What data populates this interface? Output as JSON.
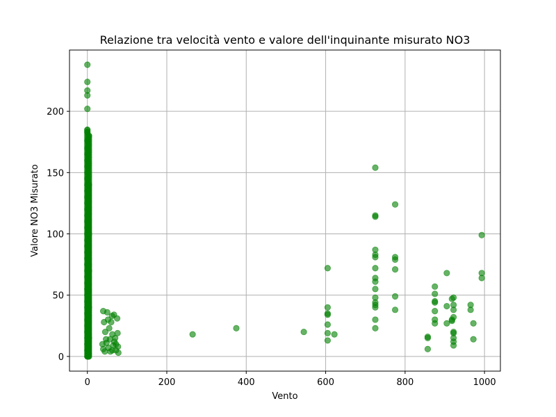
{
  "chart_data": {
    "type": "scatter",
    "title": "Relazione tra velocità vento e valore dell'inquinante misurato NO3",
    "xlabel": "Vento",
    "ylabel": "Valore NO3 Misurato",
    "xlim": [
      -45,
      1040
    ],
    "ylim": [
      -12,
      250
    ],
    "xticks": [
      0,
      200,
      400,
      600,
      800,
      1000
    ],
    "yticks": [
      0,
      50,
      100,
      150,
      200
    ],
    "grid": true,
    "marker_color": "#008000",
    "marker_opacity": 0.6,
    "points": [
      [
        0,
        238
      ],
      [
        0,
        224
      ],
      [
        0,
        217
      ],
      [
        0,
        213
      ],
      [
        0,
        202
      ],
      [
        0,
        185
      ],
      [
        0,
        183
      ],
      [
        0,
        176
      ],
      [
        0,
        170
      ],
      [
        0,
        165
      ],
      [
        0,
        160
      ],
      [
        0,
        155
      ],
      [
        0,
        150
      ],
      [
        0,
        145
      ],
      [
        0,
        140
      ],
      [
        0,
        135
      ],
      [
        0,
        130
      ],
      [
        0,
        125
      ],
      [
        0,
        120
      ],
      [
        0,
        115
      ],
      [
        0,
        110
      ],
      [
        0,
        105
      ],
      [
        0,
        100
      ],
      [
        0,
        95
      ],
      [
        0,
        90
      ],
      [
        0,
        85
      ],
      [
        0,
        80
      ],
      [
        0,
        75
      ],
      [
        0,
        70
      ],
      [
        0,
        65
      ],
      [
        0,
        60
      ],
      [
        0,
        55
      ],
      [
        0,
        50
      ],
      [
        0,
        45
      ],
      [
        0,
        40
      ],
      [
        0,
        35
      ],
      [
        0,
        30
      ],
      [
        0,
        25
      ],
      [
        0,
        20
      ],
      [
        0,
        15
      ],
      [
        0,
        10
      ],
      [
        0,
        5
      ],
      [
        0,
        0
      ],
      [
        2,
        112
      ],
      [
        2,
        95
      ],
      [
        2,
        80
      ],
      [
        2,
        65
      ],
      [
        2,
        50
      ],
      [
        2,
        35
      ],
      [
        2,
        20
      ],
      [
        2,
        8
      ],
      [
        4,
        180
      ],
      [
        4,
        140
      ],
      [
        4,
        100
      ],
      [
        4,
        70
      ],
      [
        4,
        40
      ],
      [
        4,
        15
      ],
      [
        40,
        37
      ],
      [
        42,
        28
      ],
      [
        45,
        20
      ],
      [
        48,
        11
      ],
      [
        50,
        36
      ],
      [
        52,
        30
      ],
      [
        55,
        23
      ],
      [
        57,
        14
      ],
      [
        60,
        28
      ],
      [
        62,
        33
      ],
      [
        63,
        18
      ],
      [
        65,
        9
      ],
      [
        67,
        34
      ],
      [
        70,
        15
      ],
      [
        72,
        5
      ],
      [
        75,
        31
      ],
      [
        76,
        19
      ],
      [
        77,
        8
      ],
      [
        78,
        3
      ],
      [
        38,
        10
      ],
      [
        40,
        6
      ],
      [
        44,
        4
      ],
      [
        47,
        14
      ],
      [
        53,
        7
      ],
      [
        58,
        4
      ],
      [
        63,
        5
      ],
      [
        68,
        12
      ],
      [
        72,
        10
      ],
      [
        265,
        18
      ],
      [
        375,
        23
      ],
      [
        545,
        20
      ],
      [
        605,
        72
      ],
      [
        605,
        40
      ],
      [
        605,
        35
      ],
      [
        605,
        34
      ],
      [
        605,
        26
      ],
      [
        605,
        19
      ],
      [
        605,
        13
      ],
      [
        622,
        18
      ],
      [
        725,
        154
      ],
      [
        725,
        115
      ],
      [
        725,
        114
      ],
      [
        725,
        87
      ],
      [
        725,
        83
      ],
      [
        725,
        81
      ],
      [
        725,
        72
      ],
      [
        725,
        64
      ],
      [
        725,
        61
      ],
      [
        725,
        55
      ],
      [
        725,
        48
      ],
      [
        725,
        44
      ],
      [
        725,
        42
      ],
      [
        725,
        40
      ],
      [
        725,
        30
      ],
      [
        725,
        23
      ],
      [
        775,
        124
      ],
      [
        775,
        81
      ],
      [
        775,
        79
      ],
      [
        775,
        71
      ],
      [
        775,
        49
      ],
      [
        775,
        38
      ],
      [
        857,
        16
      ],
      [
        857,
        15
      ],
      [
        857,
        6
      ],
      [
        875,
        57
      ],
      [
        875,
        51
      ],
      [
        875,
        45
      ],
      [
        875,
        44
      ],
      [
        875,
        37
      ],
      [
        875,
        30
      ],
      [
        875,
        27
      ],
      [
        905,
        68
      ],
      [
        905,
        41
      ],
      [
        905,
        27
      ],
      [
        918,
        47
      ],
      [
        918,
        30
      ],
      [
        918,
        29
      ],
      [
        922,
        48
      ],
      [
        922,
        42
      ],
      [
        922,
        38
      ],
      [
        922,
        32
      ],
      [
        922,
        20
      ],
      [
        922,
        19
      ],
      [
        922,
        15
      ],
      [
        922,
        12
      ],
      [
        922,
        9
      ],
      [
        965,
        42
      ],
      [
        965,
        38
      ],
      [
        972,
        27
      ],
      [
        972,
        14
      ],
      [
        993,
        99
      ],
      [
        993,
        68
      ],
      [
        993,
        64
      ]
    ]
  }
}
